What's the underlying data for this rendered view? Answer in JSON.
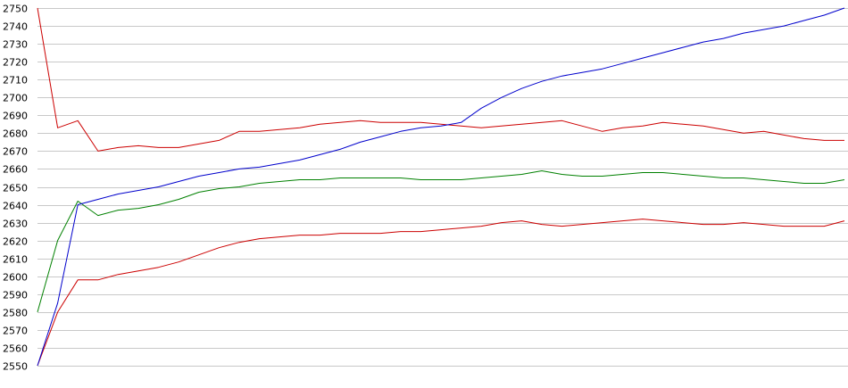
{
  "chart_data": {
    "type": "line",
    "title": "",
    "xlabel": "",
    "ylabel": "",
    "ylim": [
      2550,
      2750
    ],
    "y_ticks": [
      2550,
      2560,
      2570,
      2580,
      2590,
      2600,
      2610,
      2620,
      2630,
      2640,
      2650,
      2660,
      2670,
      2680,
      2690,
      2700,
      2710,
      2720,
      2730,
      2740,
      2750
    ],
    "y_tick_labels": [
      "2550",
      "2560",
      "2570",
      "2580",
      "2590",
      "2600",
      "2610",
      "2620",
      "2630",
      "2640",
      "2650",
      "2660",
      "2670",
      "2680",
      "2690",
      "2700",
      "2710",
      "2720",
      "2730",
      "2740",
      "2750"
    ],
    "grid": "horizontal",
    "legend": "none",
    "x": [
      0,
      5,
      10,
      15,
      20,
      25,
      30,
      35,
      40,
      45,
      50,
      55,
      60,
      65,
      70,
      75,
      80,
      85,
      90,
      95,
      100,
      105,
      110,
      115,
      120,
      125,
      130,
      135,
      140,
      145,
      150,
      155,
      160,
      165,
      170,
      175,
      180,
      185,
      190,
      195,
      200
    ],
    "series": [
      {
        "color": "#cc0000",
        "values": [
          2750,
          2683,
          2687,
          2670,
          2672,
          2673,
          2672,
          2672,
          2674,
          2676,
          2681,
          2681,
          2682,
          2683,
          2685,
          2686,
          2687,
          2686,
          2686,
          2686,
          2685,
          2684,
          2683,
          2684,
          2685,
          2686,
          2687,
          2684,
          2681,
          2683,
          2684,
          2686,
          2685,
          2684,
          2682,
          2680,
          2681,
          2679,
          2677,
          2676,
          2676
        ]
      },
      {
        "color": "#cc0000",
        "values": [
          2550,
          2580,
          2598,
          2598,
          2601,
          2603,
          2605,
          2608,
          2612,
          2616,
          2619,
          2621,
          2622,
          2623,
          2623,
          2624,
          2624,
          2624,
          2625,
          2625,
          2626,
          2627,
          2628,
          2630,
          2631,
          2629,
          2628,
          2629,
          2630,
          2631,
          2632,
          2631,
          2630,
          2629,
          2629,
          2630,
          2629,
          2628,
          2628,
          2628,
          2631
        ]
      },
      {
        "color": "#008000",
        "values": [
          2580,
          2620,
          2642,
          2634,
          2637,
          2638,
          2640,
          2643,
          2647,
          2649,
          2650,
          2652,
          2653,
          2654,
          2654,
          2655,
          2655,
          2655,
          2655,
          2654,
          2654,
          2654,
          2655,
          2656,
          2657,
          2659,
          2657,
          2656,
          2656,
          2657,
          2658,
          2658,
          2657,
          2656,
          2655,
          2655,
          2654,
          2653,
          2652,
          2652,
          2654
        ]
      },
      {
        "color": "#0000cc",
        "values": [
          2550,
          2585,
          2640,
          2643,
          2646,
          2648,
          2650,
          2653,
          2656,
          2658,
          2660,
          2661,
          2663,
          2665,
          2668,
          2671,
          2675,
          2678,
          2681,
          2683,
          2684,
          2686,
          2694,
          2700,
          2705,
          2709,
          2712,
          2714,
          2716,
          2719,
          2722,
          2725,
          2728,
          2731,
          2733,
          2736,
          2738,
          2740,
          2743,
          2746,
          2750
        ]
      }
    ]
  }
}
